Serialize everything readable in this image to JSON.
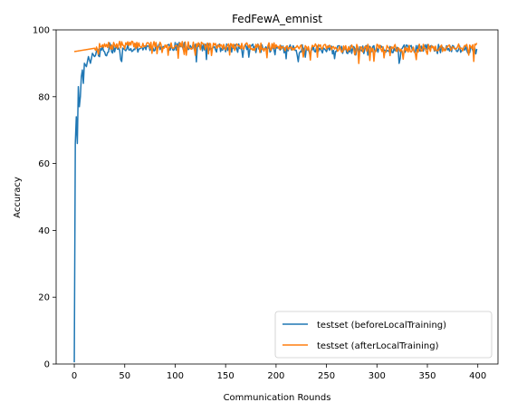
{
  "chart_data": {
    "type": "line",
    "title": "FedFewA_emnist",
    "xlabel": "Communication Rounds",
    "ylabel": "Accuracy",
    "xlim": [
      -18,
      420
    ],
    "ylim": [
      0,
      100
    ],
    "xticks": [
      0,
      50,
      100,
      150,
      200,
      250,
      300,
      350,
      400
    ],
    "yticks": [
      0,
      20,
      40,
      60,
      80,
      100
    ],
    "grid": false,
    "legend_position": "lower-right",
    "series": [
      {
        "name": "testset (beforeLocalTraining)",
        "color": "#1f77b4",
        "anchors": [
          [
            0,
            0.5
          ],
          [
            1,
            66
          ],
          [
            2,
            74
          ],
          [
            3,
            66
          ],
          [
            4,
            83
          ],
          [
            5,
            77
          ],
          [
            6,
            80
          ],
          [
            7,
            86
          ],
          [
            8,
            88
          ],
          [
            9,
            84
          ],
          [
            10,
            90
          ],
          [
            12,
            89
          ],
          [
            14,
            92
          ],
          [
            16,
            90
          ],
          [
            18,
            93
          ],
          [
            20,
            92
          ],
          [
            22,
            94
          ],
          [
            25,
            93
          ],
          [
            28,
            95
          ],
          [
            30,
            93
          ],
          [
            35,
            95
          ],
          [
            40,
            94
          ],
          [
            50,
            95
          ],
          [
            60,
            94.5
          ],
          [
            80,
            95
          ],
          [
            100,
            95
          ],
          [
            150,
            94.5
          ],
          [
            200,
            94.5
          ],
          [
            250,
            94
          ],
          [
            300,
            94
          ],
          [
            350,
            94.5
          ],
          [
            400,
            94
          ]
        ],
        "noise": 1.3,
        "seed": 11
      },
      {
        "name": "testset (afterLocalTraining)",
        "color": "#ff7f0e",
        "anchors": [
          [
            0,
            93.5
          ],
          [
            10,
            94
          ],
          [
            20,
            94.5
          ],
          [
            30,
            95
          ],
          [
            50,
            95.5
          ],
          [
            80,
            95.5
          ],
          [
            100,
            95.5
          ],
          [
            150,
            95
          ],
          [
            200,
            95
          ],
          [
            250,
            94.5
          ],
          [
            300,
            94.5
          ],
          [
            350,
            94.5
          ],
          [
            400,
            95
          ]
        ],
        "noise": 1.2,
        "seed": 7
      }
    ]
  }
}
